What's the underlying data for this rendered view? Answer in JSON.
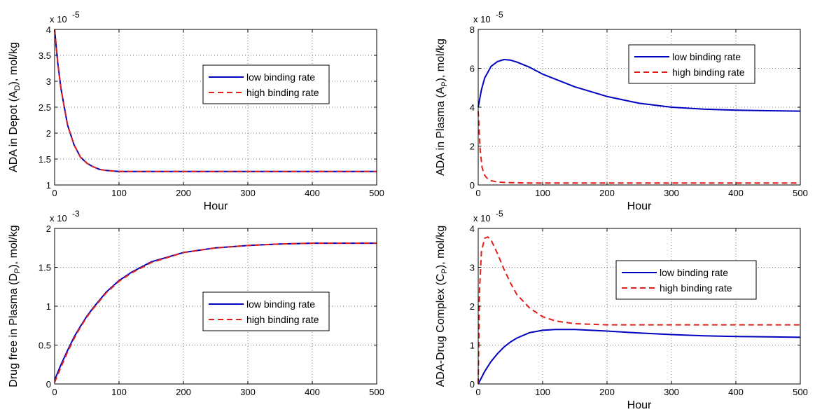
{
  "chart_data": [
    {
      "type": "line",
      "xlabel": "Hour",
      "ylabel": "ADA in Depot (A",
      "ylabel_sub": "D",
      "ylabel_tail": "), mol/kg",
      "multiplier": "x 10",
      "exponent": "-5",
      "xlim": [
        0,
        500
      ],
      "ylim": [
        1,
        4
      ],
      "xticks": [
        "0",
        "100",
        "200",
        "300",
        "400",
        "500"
      ],
      "yticks": [
        "1",
        "1.5",
        "2",
        "2.5",
        "3",
        "3.5",
        "4"
      ],
      "grid": true,
      "legend_position": "center-right",
      "series": [
        {
          "name": "low binding rate",
          "color": "#0000bf",
          "style": "solid",
          "x": [
            0,
            5,
            10,
            20,
            30,
            40,
            50,
            60,
            70,
            80,
            100,
            150,
            200,
            300,
            400,
            500
          ],
          "y": [
            4.0,
            3.34,
            2.85,
            2.16,
            1.78,
            1.54,
            1.42,
            1.35,
            1.3,
            1.28,
            1.26,
            1.26,
            1.26,
            1.26,
            1.26,
            1.26
          ]
        },
        {
          "name": "high binding rate",
          "color": "#e0201a",
          "style": "dashed",
          "x": [
            0,
            5,
            10,
            20,
            30,
            40,
            50,
            60,
            70,
            80,
            100,
            150,
            200,
            300,
            400,
            500
          ],
          "y": [
            4.0,
            3.34,
            2.85,
            2.16,
            1.78,
            1.54,
            1.42,
            1.35,
            1.3,
            1.28,
            1.26,
            1.26,
            1.26,
            1.26,
            1.26,
            1.26
          ]
        }
      ]
    },
    {
      "type": "line",
      "xlabel": "Hour",
      "ylabel": "ADA in Plasma (A",
      "ylabel_sub": "P",
      "ylabel_tail": "), mol/kg",
      "multiplier": "x 10",
      "exponent": "-5",
      "xlim": [
        0,
        500
      ],
      "ylim": [
        0,
        8
      ],
      "xticks": [
        "0",
        "100",
        "200",
        "300",
        "400",
        "500"
      ],
      "yticks": [
        "0",
        "2",
        "4",
        "6",
        "8"
      ],
      "grid": true,
      "legend_position": "top-right",
      "series": [
        {
          "name": "low binding rate",
          "color": "#0000bf",
          "style": "solid",
          "x": [
            0,
            5,
            10,
            20,
            30,
            40,
            50,
            60,
            80,
            100,
            150,
            200,
            250,
            300,
            350,
            400,
            450,
            500
          ],
          "y": [
            4.0,
            4.9,
            5.5,
            6.1,
            6.35,
            6.45,
            6.42,
            6.32,
            6.05,
            5.7,
            5.05,
            4.55,
            4.2,
            4.0,
            3.9,
            3.85,
            3.82,
            3.8
          ]
        },
        {
          "name": "high binding rate",
          "color": "#e0201a",
          "style": "dashed",
          "x": [
            0,
            3,
            6,
            10,
            15,
            20,
            30,
            50,
            80,
            100,
            200,
            300,
            400,
            500
          ],
          "y": [
            3.8,
            1.8,
            0.9,
            0.5,
            0.3,
            0.22,
            0.15,
            0.12,
            0.1,
            0.1,
            0.1,
            0.1,
            0.1,
            0.1
          ]
        }
      ]
    },
    {
      "type": "line",
      "xlabel": "",
      "ylabel": "Drug free in Plasma (D",
      "ylabel_sub": "P",
      "ylabel_tail": "), mol/kg",
      "multiplier": "x 10",
      "exponent": "-3",
      "xlim": [
        0,
        500
      ],
      "ylim": [
        0,
        2
      ],
      "xticks": [
        "0",
        "100",
        "200",
        "300",
        "400",
        "500"
      ],
      "yticks": [
        "0",
        "0.5",
        "1",
        "1.5",
        "2"
      ],
      "grid": true,
      "legend_position": "lower-right",
      "series": [
        {
          "name": "low binding rate",
          "color": "#0000bf",
          "style": "solid",
          "x": [
            0,
            10,
            20,
            30,
            40,
            50,
            60,
            80,
            100,
            120,
            150,
            200,
            250,
            300,
            350,
            400,
            450,
            500
          ],
          "y": [
            0.05,
            0.25,
            0.43,
            0.6,
            0.74,
            0.87,
            0.98,
            1.18,
            1.33,
            1.44,
            1.57,
            1.69,
            1.75,
            1.78,
            1.8,
            1.81,
            1.81,
            1.81
          ]
        },
        {
          "name": "high binding rate",
          "color": "#e0201a",
          "style": "dashed",
          "x": [
            0,
            10,
            20,
            30,
            40,
            50,
            60,
            80,
            100,
            120,
            150,
            200,
            250,
            300,
            350,
            400,
            450,
            500
          ],
          "y": [
            0.02,
            0.22,
            0.41,
            0.58,
            0.73,
            0.86,
            0.97,
            1.17,
            1.32,
            1.43,
            1.56,
            1.69,
            1.75,
            1.78,
            1.8,
            1.81,
            1.81,
            1.81
          ]
        }
      ]
    },
    {
      "type": "line",
      "xlabel": "Hour",
      "ylabel": "ADA-Drug Complex (C",
      "ylabel_sub": "P",
      "ylabel_tail": "), mol/kg",
      "multiplier": "x 10",
      "exponent": "-5",
      "xlim": [
        0,
        500
      ],
      "ylim": [
        0,
        4
      ],
      "xticks": [
        "0",
        "100",
        "200",
        "300",
        "400",
        "500"
      ],
      "yticks": [
        "0",
        "1",
        "2",
        "3",
        "4"
      ],
      "grid": true,
      "legend_position": "center-right",
      "series": [
        {
          "name": "low binding rate",
          "color": "#0000bf",
          "style": "solid",
          "x": [
            0,
            10,
            20,
            30,
            40,
            50,
            60,
            80,
            100,
            120,
            150,
            200,
            250,
            300,
            350,
            400,
            450,
            500
          ],
          "y": [
            0.0,
            0.32,
            0.58,
            0.78,
            0.95,
            1.08,
            1.18,
            1.32,
            1.38,
            1.4,
            1.4,
            1.36,
            1.31,
            1.27,
            1.24,
            1.22,
            1.21,
            1.2
          ]
        },
        {
          "name": "high binding rate",
          "color": "#e0201a",
          "style": "dashed",
          "x": [
            0,
            2,
            5,
            10,
            15,
            20,
            30,
            40,
            50,
            60,
            80,
            100,
            120,
            150,
            200,
            300,
            400,
            500
          ],
          "y": [
            0.0,
            2.4,
            3.4,
            3.75,
            3.78,
            3.7,
            3.35,
            2.95,
            2.6,
            2.3,
            1.95,
            1.73,
            1.62,
            1.55,
            1.52,
            1.52,
            1.52,
            1.52
          ]
        }
      ]
    }
  ]
}
